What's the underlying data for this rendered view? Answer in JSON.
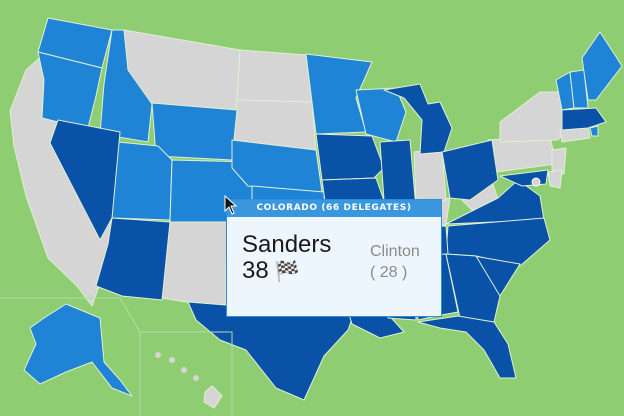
{
  "colors": {
    "background": "#8fcd72",
    "clinton_won": "#0a52a8",
    "sanders_won": "#1f84d6",
    "undecided": "#d5d5d5",
    "border": "#dff0d3"
  },
  "tooltip": {
    "header": "COLORADO (66 DELEGATES)",
    "winner_name": "Sanders",
    "winner_delegates": "38",
    "winner_flag_icon": "checkered-flag-icon",
    "loser_name": "Clinton",
    "loser_delegates": "( 28 )"
  }
}
